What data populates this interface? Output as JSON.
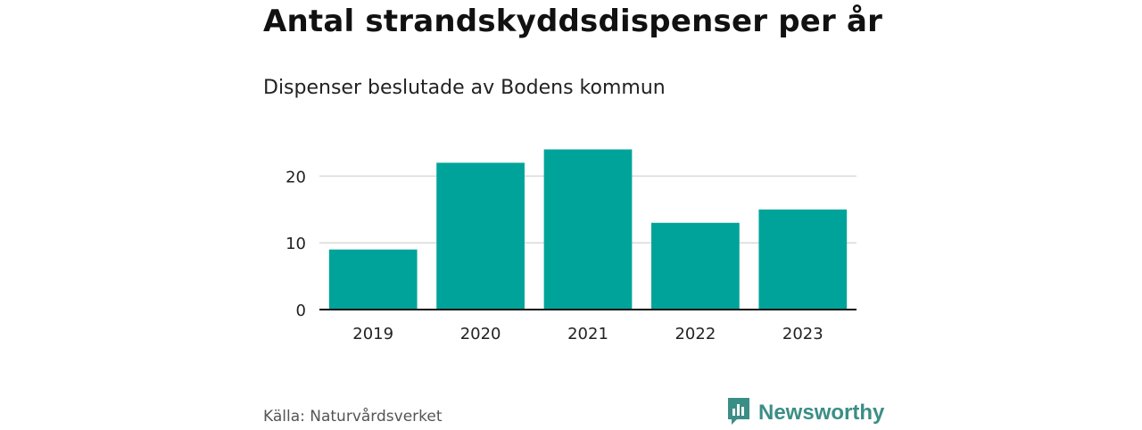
{
  "title": "Antal strandskyddsdispenser per år",
  "subtitle": "Dispenser beslutade av Bodens kommun",
  "source": "Källa: Naturvårdsverket",
  "brand": {
    "name": "Newsworthy",
    "icon": "newsworthy-logo-icon",
    "color": "#3b8e86"
  },
  "colors": {
    "bar": "#00a39a",
    "grid": "#d9d9d9",
    "axis": "#111111",
    "tick_text": "#222222"
  },
  "chart_data": {
    "type": "bar",
    "title": "Antal strandskyddsdispenser per år",
    "subtitle": "Dispenser beslutade av Bodens kommun",
    "categories": [
      "2019",
      "2020",
      "2021",
      "2022",
      "2023"
    ],
    "values": [
      9,
      22,
      24,
      13,
      15
    ],
    "xlabel": "",
    "ylabel": "",
    "ylim": [
      0,
      25
    ],
    "yticks": [
      0,
      10,
      20
    ],
    "grid": true,
    "legend": "none"
  }
}
